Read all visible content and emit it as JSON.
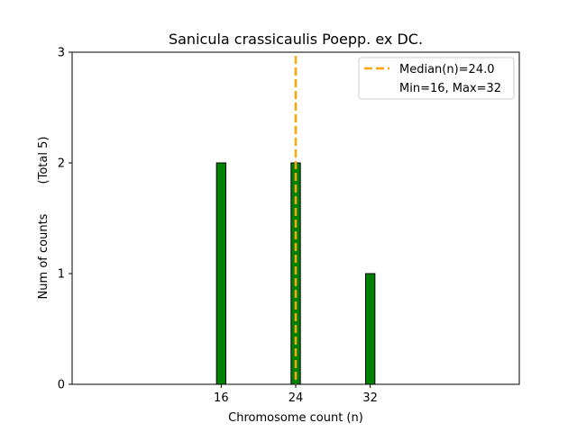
{
  "chart_data": {
    "type": "bar",
    "title": "Sanicula crassicaulis Poepp. ex DC.",
    "xlabel": "Chromosome count (n)",
    "ylabel": "Num of counts",
    "ylabel_note": "(Total 5)",
    "x": [
      16,
      24,
      32
    ],
    "values": [
      2,
      2,
      1
    ],
    "xticks": [
      "16",
      "24",
      "32"
    ],
    "yticks": [
      "0",
      "1",
      "2",
      "3"
    ],
    "xlim": [
      0,
      48
    ],
    "ylim": [
      0,
      3
    ],
    "bar_width": 1,
    "median": 24.0,
    "legend": {
      "placement": "top-right",
      "entries": [
        "Median(n)=24.0",
        "Min=16, Max=32"
      ]
    },
    "grid": false,
    "colors": {
      "bar": "#008000",
      "bar_edge": "#000000",
      "median_line": "#FFA500"
    }
  }
}
